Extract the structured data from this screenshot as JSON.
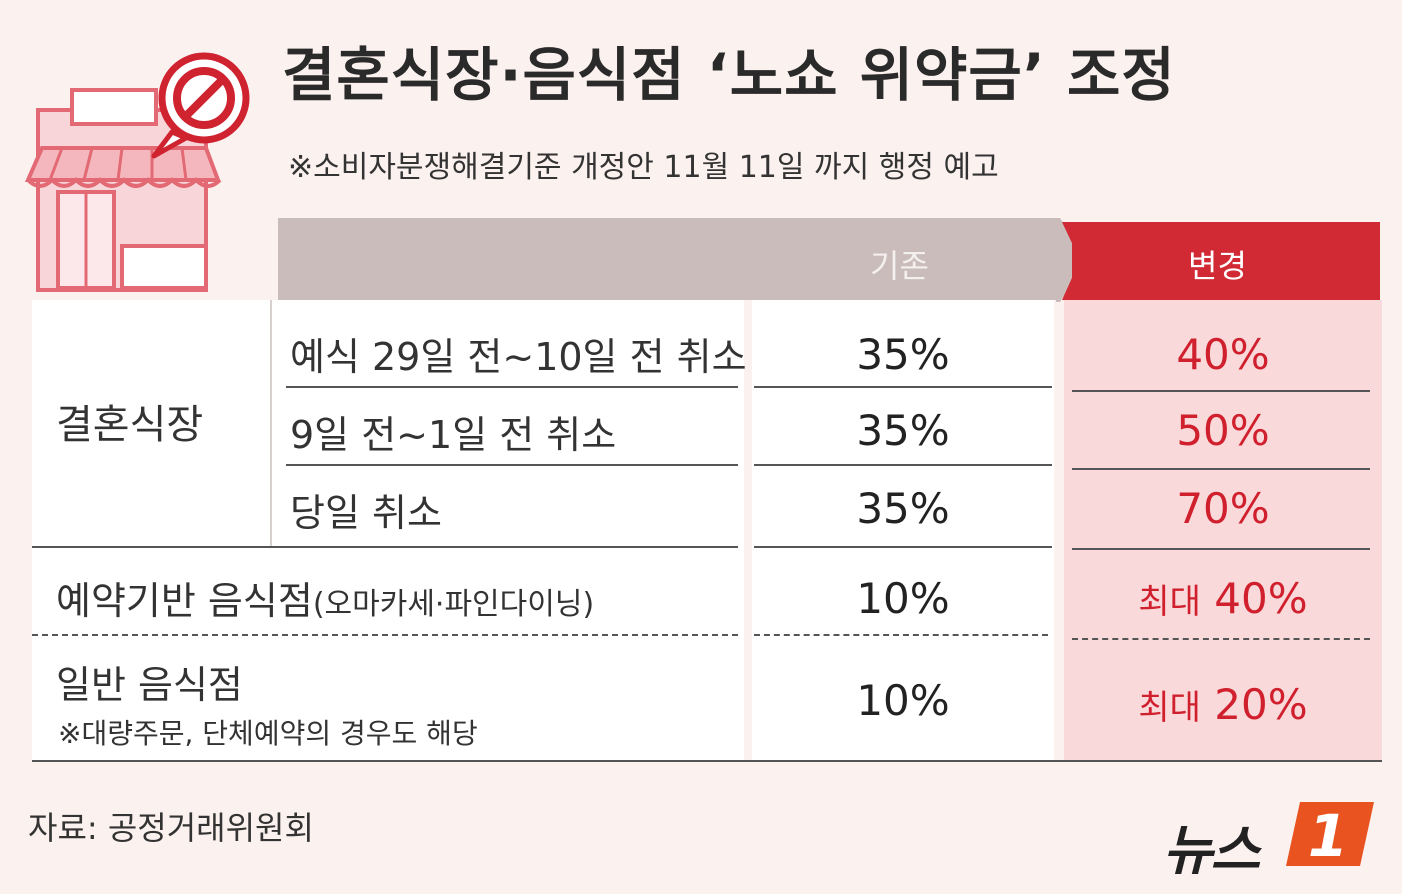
{
  "title": "결혼식장·음식점 ‘노쇼 위약금’ 조정",
  "subtitle": "※소비자분쟁해결기준 개정안 11월 11일 까지 행정 예고",
  "columns": {
    "current": "기존",
    "changed": "변경"
  },
  "wedding": {
    "category": "결혼식장",
    "rows": [
      {
        "label": "예식 29일 전~10일 전 취소",
        "current": "35%",
        "changed": "40%"
      },
      {
        "label": "9일 전~1일 전 취소",
        "current": "35%",
        "changed": "50%"
      },
      {
        "label": "당일 취소",
        "current": "35%",
        "changed": "70%"
      }
    ]
  },
  "reservation_restaurant": {
    "label": "예약기반 음식점",
    "label_sub": "(오마카세·파인다이닝)",
    "current": "10%",
    "changed_prefix": "최대",
    "changed_value": "40%"
  },
  "general_restaurant": {
    "label": "일반 음식점",
    "note": "※대량주문, 단체예약의 경우도 해당",
    "current": "10%",
    "changed_prefix": "최대",
    "changed_value": "20%"
  },
  "source": "자료: 공정거래위원회",
  "logo": {
    "text": "뉴스",
    "mark": "1"
  },
  "colors": {
    "accent_red": "#d22a34",
    "header_gray": "#c9bcba",
    "changed_bg": "#f9d9da",
    "background": "#fbf1ef"
  },
  "icons": [
    "store-icon",
    "prohibited-icon"
  ]
}
